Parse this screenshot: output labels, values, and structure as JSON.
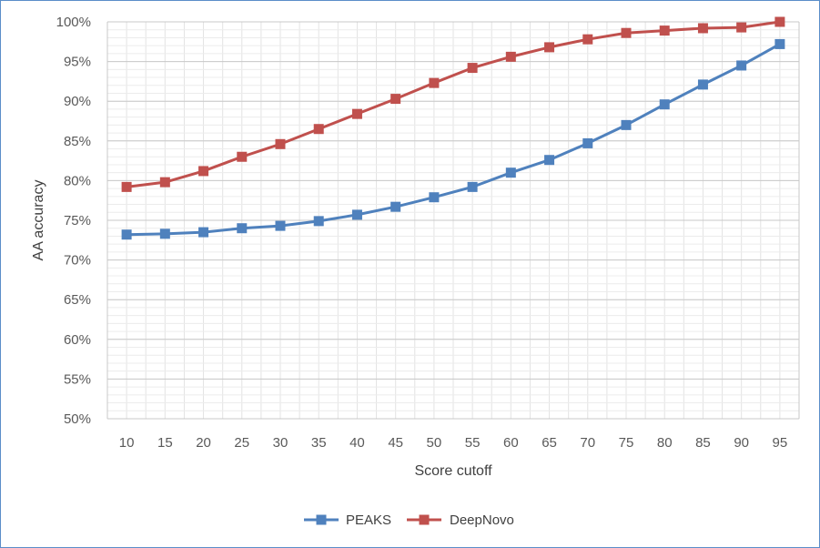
{
  "chart_data": {
    "type": "line",
    "title": "",
    "xlabel": "Score cutoff",
    "ylabel": "AA accuracy",
    "categories": [
      "10",
      "15",
      "20",
      "25",
      "30",
      "35",
      "40",
      "45",
      "50",
      "55",
      "60",
      "65",
      "70",
      "75",
      "80",
      "85",
      "90",
      "95"
    ],
    "ylim": [
      50,
      100
    ],
    "yticks": [
      50,
      55,
      60,
      65,
      70,
      75,
      80,
      85,
      90,
      95,
      100
    ],
    "ytick_labels": [
      "50%",
      "55%",
      "60%",
      "65%",
      "70%",
      "75%",
      "80%",
      "85%",
      "90%",
      "95%",
      "100%"
    ],
    "grid": true,
    "legend_position": "bottom",
    "series": [
      {
        "name": "PEAKS",
        "color": "#4f81bd",
        "marker": "square",
        "values": [
          73.2,
          73.3,
          73.5,
          74.0,
          74.3,
          74.9,
          75.7,
          76.7,
          77.9,
          79.2,
          81.0,
          82.6,
          84.7,
          87.0,
          89.6,
          92.1,
          94.5,
          97.2
        ]
      },
      {
        "name": "DeepNovo",
        "color": "#c0504d",
        "marker": "square",
        "values": [
          79.2,
          79.8,
          81.2,
          83.0,
          84.6,
          86.5,
          88.4,
          90.3,
          92.3,
          94.2,
          95.6,
          96.8,
          97.8,
          98.6,
          98.9,
          99.2,
          99.3,
          100.0
        ]
      }
    ]
  }
}
